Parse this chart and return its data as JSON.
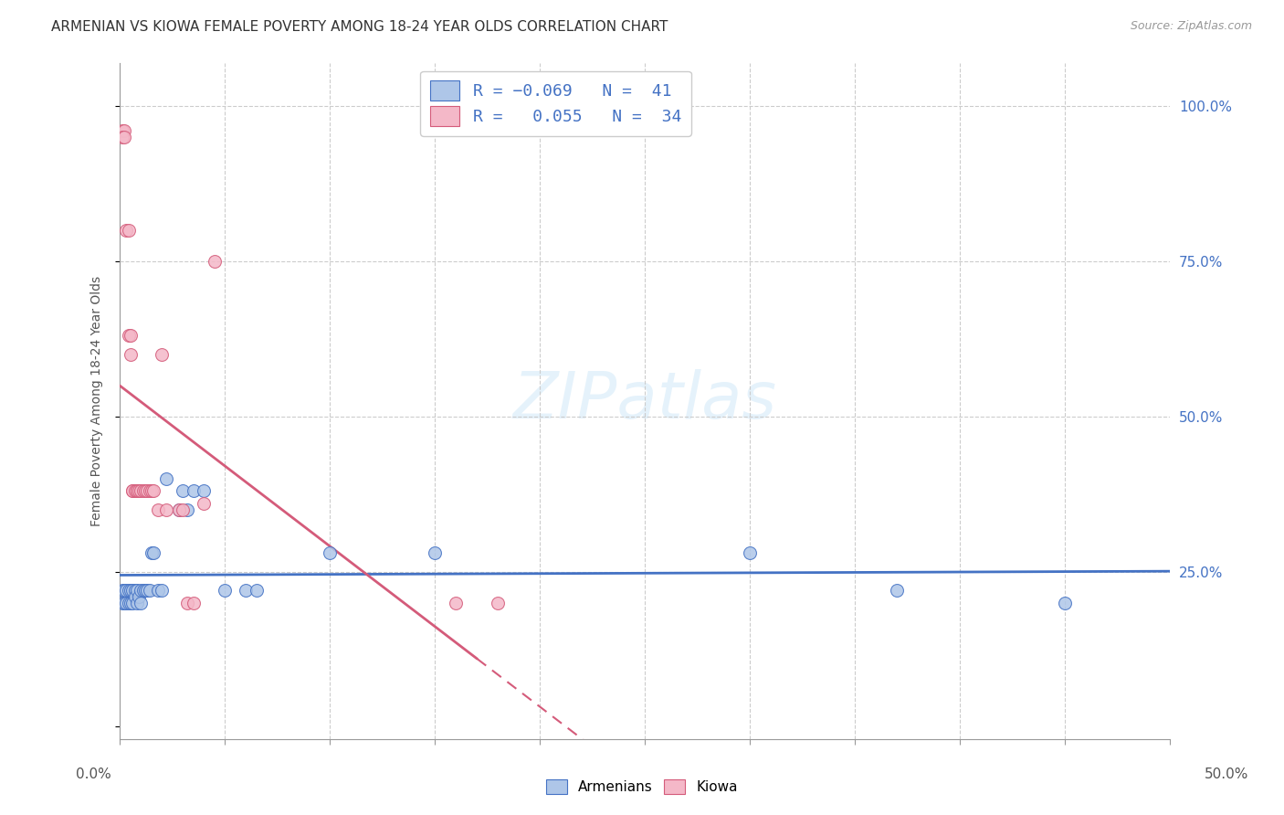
{
  "title": "ARMENIAN VS KIOWA FEMALE POVERTY AMONG 18-24 YEAR OLDS CORRELATION CHART",
  "source": "Source: ZipAtlas.com",
  "ylabel": "Female Poverty Among 18-24 Year Olds",
  "xlim": [
    0.0,
    0.5
  ],
  "ylim": [
    -0.02,
    1.07
  ],
  "legend_armenians_R": "-0.069",
  "legend_armenians_N": "41",
  "legend_kiowa_R": "0.055",
  "legend_kiowa_N": "34",
  "armenians_color": "#aec6e8",
  "kiowa_color": "#f4b8c8",
  "trendline_armenians_color": "#4472c4",
  "trendline_kiowa_color": "#d45b7a",
  "background_color": "#ffffff",
  "armenians_x": [
    0.001,
    0.002,
    0.002,
    0.003,
    0.003,
    0.004,
    0.004,
    0.005,
    0.005,
    0.006,
    0.006,
    0.007,
    0.007,
    0.008,
    0.008,
    0.009,
    0.01,
    0.01,
    0.011,
    0.012,
    0.013,
    0.014,
    0.015,
    0.016,
    0.017,
    0.018,
    0.019,
    0.02,
    0.022,
    0.025,
    0.028,
    0.03,
    0.032,
    0.035,
    0.04,
    0.05,
    0.065,
    0.1,
    0.15,
    0.3,
    0.4
  ],
  "armenians_y": [
    0.22,
    0.2,
    0.22,
    0.2,
    0.22,
    0.22,
    0.2,
    0.21,
    0.2,
    0.22,
    0.2,
    0.22,
    0.21,
    0.2,
    0.22,
    0.21,
    0.22,
    0.21,
    0.22,
    0.22,
    0.22,
    0.22,
    0.28,
    0.28,
    0.22,
    0.22,
    0.28,
    0.22,
    0.4,
    0.22,
    0.35,
    0.38,
    0.35,
    0.38,
    0.38,
    0.22,
    0.22,
    0.28,
    0.28,
    0.28,
    0.2
  ],
  "kiowa_x": [
    0.001,
    0.001,
    0.002,
    0.002,
    0.003,
    0.004,
    0.004,
    0.005,
    0.005,
    0.006,
    0.006,
    0.007,
    0.008,
    0.009,
    0.01,
    0.01,
    0.011,
    0.012,
    0.013,
    0.014,
    0.015,
    0.016,
    0.018,
    0.02,
    0.022,
    0.025,
    0.028,
    0.03,
    0.032,
    0.035,
    0.04,
    0.045,
    0.16,
    0.18
  ],
  "kiowa_y": [
    0.96,
    0.95,
    0.96,
    0.95,
    0.8,
    0.65,
    0.63,
    0.63,
    0.6,
    0.38,
    0.38,
    0.38,
    0.38,
    0.38,
    0.38,
    0.38,
    0.38,
    0.38,
    0.38,
    0.38,
    0.35,
    0.35,
    0.35,
    0.6,
    0.35,
    0.38,
    0.35,
    0.35,
    0.2,
    0.2,
    0.36,
    0.75,
    0.2,
    0.2
  ]
}
